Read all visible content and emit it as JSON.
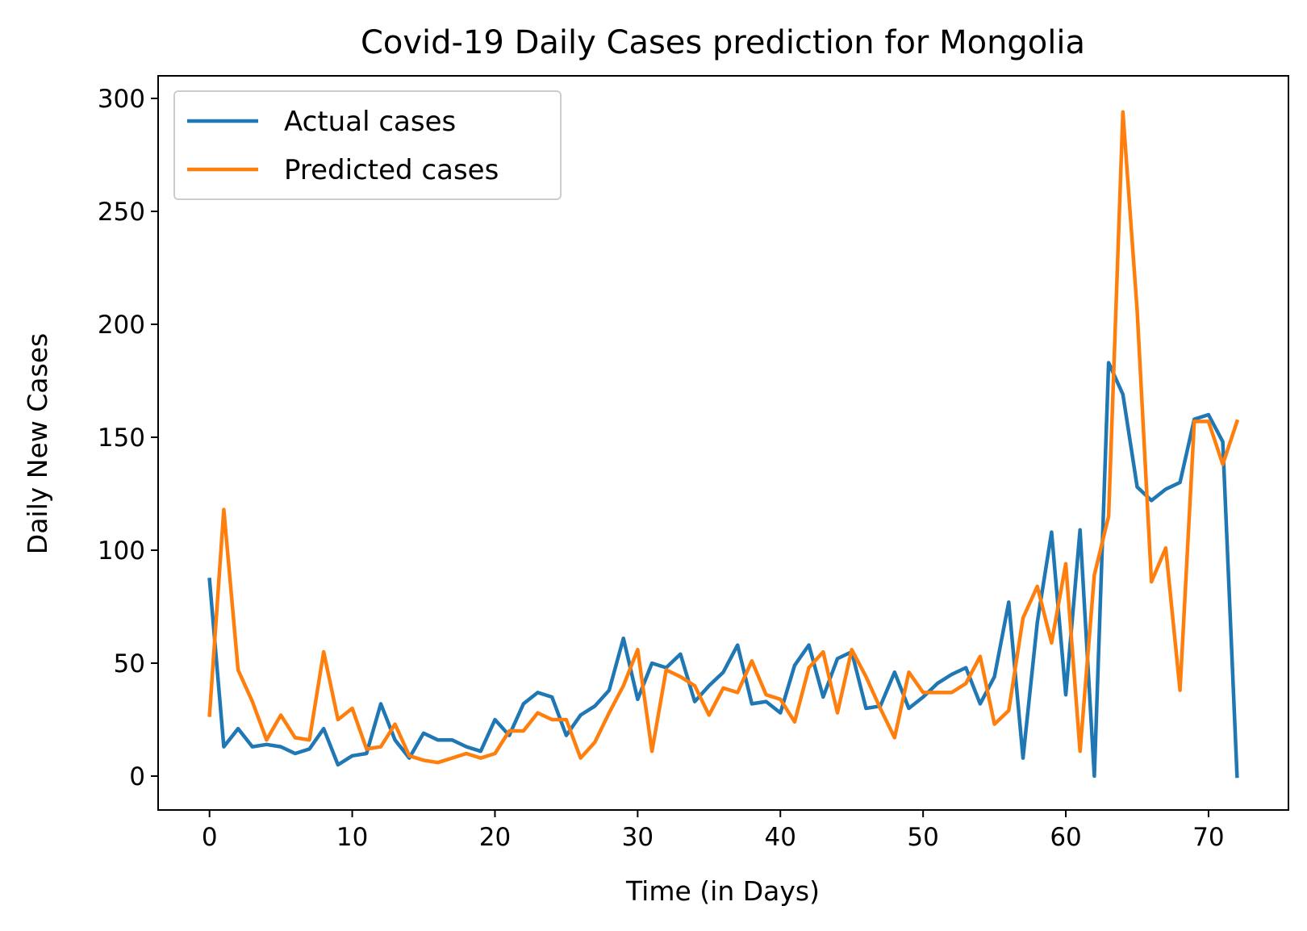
{
  "chart_data": {
    "type": "line",
    "title": "Covid-19 Daily Cases prediction for Mongolia",
    "xlabel": "Time (in Days)",
    "ylabel": "Daily New Cases",
    "xlim": [
      -3.6,
      75.6
    ],
    "ylim": [
      -15,
      310
    ],
    "xticks": [
      0,
      10,
      20,
      30,
      40,
      50,
      60,
      70
    ],
    "yticks": [
      0,
      50,
      100,
      150,
      200,
      250,
      300
    ],
    "grid": false,
    "legend_position": "upper left",
    "series": [
      {
        "name": "Actual cases",
        "color": "#1f77b4",
        "x": [
          0,
          1,
          2,
          3,
          4,
          5,
          6,
          7,
          8,
          9,
          10,
          11,
          12,
          13,
          14,
          15,
          16,
          17,
          18,
          19,
          20,
          21,
          22,
          23,
          24,
          25,
          26,
          27,
          28,
          29,
          30,
          31,
          32,
          33,
          34,
          35,
          36,
          37,
          38,
          39,
          40,
          41,
          42,
          43,
          44,
          45,
          46,
          47,
          48,
          49,
          50,
          51,
          52,
          53,
          54,
          55,
          56,
          57,
          58,
          59,
          60,
          61,
          62,
          63,
          64,
          65,
          66,
          67,
          68,
          69,
          70,
          71,
          72
        ],
        "y": [
          87,
          13,
          21,
          13,
          14,
          13,
          10,
          12,
          21,
          5,
          9,
          10,
          32,
          16,
          8,
          19,
          16,
          16,
          13,
          11,
          25,
          18,
          32,
          37,
          35,
          18,
          27,
          31,
          38,
          61,
          34,
          50,
          48,
          54,
          33,
          40,
          46,
          58,
          32,
          33,
          28,
          49,
          58,
          35,
          52,
          55,
          30,
          31,
          46,
          30,
          35,
          41,
          45,
          48,
          32,
          44,
          77,
          8,
          68,
          108,
          36,
          109,
          0,
          183,
          169,
          128,
          122,
          127,
          130,
          158,
          160,
          148,
          0
        ]
      },
      {
        "name": "Predicted cases",
        "color": "#ff7f0e",
        "x": [
          0,
          1,
          2,
          3,
          4,
          5,
          6,
          7,
          8,
          9,
          10,
          11,
          12,
          13,
          14,
          15,
          16,
          17,
          18,
          19,
          20,
          21,
          22,
          23,
          24,
          25,
          26,
          27,
          28,
          29,
          30,
          31,
          32,
          33,
          34,
          35,
          36,
          37,
          38,
          39,
          40,
          41,
          42,
          43,
          44,
          45,
          46,
          47,
          48,
          49,
          50,
          51,
          52,
          53,
          54,
          55,
          56,
          57,
          58,
          59,
          60,
          61,
          62,
          63,
          64,
          65,
          66,
          67,
          68,
          69,
          70,
          71,
          72
        ],
        "y": [
          27,
          118,
          47,
          33,
          16,
          27,
          17,
          16,
          55,
          25,
          30,
          12,
          13,
          23,
          9,
          7,
          6,
          8,
          10,
          8,
          10,
          20,
          20,
          28,
          25,
          25,
          8,
          15,
          28,
          40,
          56,
          11,
          47,
          44,
          40,
          27,
          39,
          37,
          51,
          36,
          34,
          24,
          48,
          55,
          28,
          56,
          44,
          30,
          17,
          46,
          37,
          37,
          37,
          41,
          53,
          23,
          29,
          70,
          84,
          59,
          94,
          11,
          89,
          115,
          294,
          206,
          86,
          101,
          38,
          157,
          157,
          138,
          157
        ]
      }
    ]
  }
}
